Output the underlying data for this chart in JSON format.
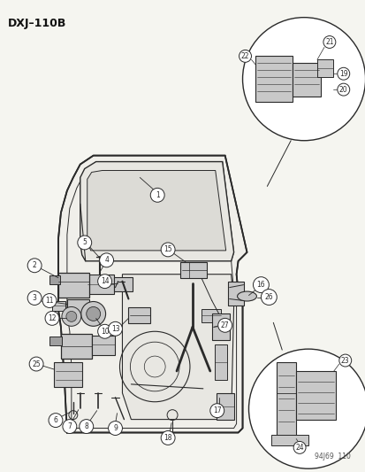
{
  "title": "DXJ–110B",
  "bg_color": "#f5f5f0",
  "fig_width": 4.14,
  "fig_height": 5.33,
  "dpi": 100,
  "bottom_label": "94J69  110",
  "line_color": "#2a2a2a",
  "light_gray": "#c8c8c8",
  "mid_gray": "#a0a0a0",
  "white": "#ffffff"
}
